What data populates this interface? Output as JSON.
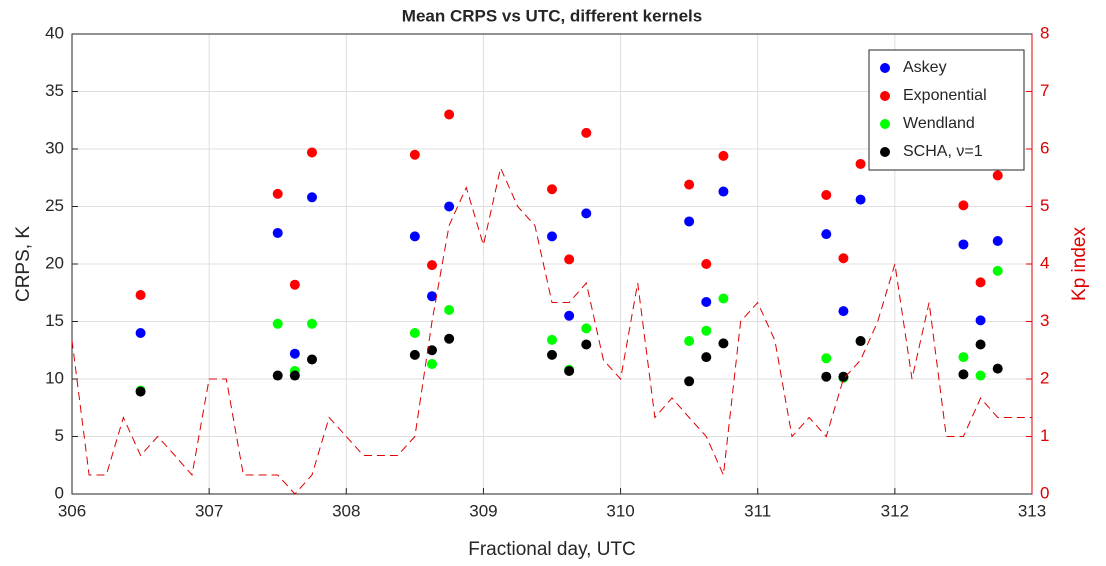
{
  "chart_data": {
    "type": "scatter",
    "title": "Mean CRPS vs UTC, different kernels",
    "xlabel": "Fractional day, UTC",
    "ylabel": "CRPS, K",
    "y2label": "Kp index",
    "x": [
      306.5,
      307.5,
      307.625,
      307.75,
      308.5,
      308.625,
      308.75,
      309.5,
      309.625,
      309.75,
      310.5,
      310.625,
      310.75,
      311.5,
      311.625,
      311.75,
      312.5,
      312.625,
      312.75
    ],
    "series": [
      {
        "name": "Askey",
        "color": "#0000ff",
        "values": [
          14.0,
          22.7,
          12.2,
          25.8,
          22.4,
          17.2,
          25.0,
          22.4,
          15.5,
          24.4,
          23.7,
          16.7,
          26.3,
          22.6,
          15.9,
          25.6,
          21.7,
          15.1,
          22.0
        ]
      },
      {
        "name": "Exponential",
        "color": "#ff0000",
        "values": [
          17.3,
          26.1,
          18.2,
          29.7,
          29.5,
          19.9,
          33.0,
          26.5,
          20.4,
          31.4,
          26.9,
          20.0,
          29.4,
          26.0,
          20.5,
          28.7,
          25.1,
          18.4,
          27.7
        ]
      },
      {
        "name": "Wendland",
        "color": "#00ff00",
        "values": [
          9.0,
          14.8,
          10.7,
          14.8,
          14.0,
          11.3,
          16.0,
          13.4,
          10.8,
          14.4,
          13.3,
          14.2,
          17.0,
          11.8,
          10.1,
          13.3,
          11.9,
          10.3,
          19.4
        ]
      },
      {
        "name": "SCHA, ν=1",
        "color": "#000000",
        "values": [
          8.9,
          10.3,
          10.3,
          11.7,
          12.1,
          12.5,
          13.5,
          12.1,
          10.7,
          13.0,
          9.8,
          11.9,
          13.1,
          10.2,
          10.2,
          13.3,
          10.4,
          13.0,
          10.9
        ]
      },
      {
        "axis": "y2",
        "color": "#dd0000",
        "line_style": "dashed",
        "x": [
          306.0,
          306.125,
          306.25,
          306.375,
          306.5,
          306.625,
          306.75,
          306.875,
          307.0,
          307.125,
          307.25,
          307.375,
          307.5,
          307.625,
          307.75,
          307.875,
          308.0,
          308.125,
          308.25,
          308.375,
          308.5,
          308.625,
          308.75,
          308.875,
          309.0,
          309.125,
          309.25,
          309.375,
          309.5,
          309.625,
          309.75,
          309.875,
          310.0,
          310.125,
          310.25,
          310.375,
          310.5,
          310.625,
          310.75,
          310.875,
          311.0,
          311.125,
          311.25,
          311.375,
          311.5,
          311.625,
          311.75,
          311.875,
          312.0,
          312.125,
          312.25,
          312.375,
          312.5,
          312.625,
          312.75,
          312.875,
          313.0
        ],
        "values": [
          2.67,
          0.33,
          0.33,
          1.33,
          0.67,
          1.0,
          0.67,
          0.33,
          2.0,
          2.0,
          0.33,
          0.33,
          0.33,
          0,
          0.33,
          1.33,
          1.0,
          0.67,
          0.67,
          0.67,
          1.0,
          3.0,
          4.67,
          5.33,
          4.33,
          5.67,
          5.0,
          4.67,
          3.33,
          3.33,
          3.67,
          2.33,
          2.0,
          3.67,
          1.33,
          1.67,
          1.33,
          1.0,
          0.33,
          3.0,
          3.33,
          2.67,
          1.0,
          1.33,
          1.0,
          2.0,
          2.33,
          3.0,
          4.0,
          2.0,
          3.33,
          1.0,
          1.0,
          1.67,
          1.33,
          1.33,
          1.33
        ]
      }
    ],
    "xlim": [
      306,
      313
    ],
    "xticks": [
      306,
      307,
      308,
      309,
      310,
      311,
      312,
      313
    ],
    "ylim": [
      0,
      40
    ],
    "yticks": [
      0,
      5,
      10,
      15,
      20,
      25,
      30,
      35,
      40
    ],
    "y2lim": [
      0,
      8
    ],
    "y2ticks": [
      0,
      1,
      2,
      3,
      4,
      5,
      6,
      7,
      8
    ],
    "grid": true,
    "legend": "northeast"
  }
}
